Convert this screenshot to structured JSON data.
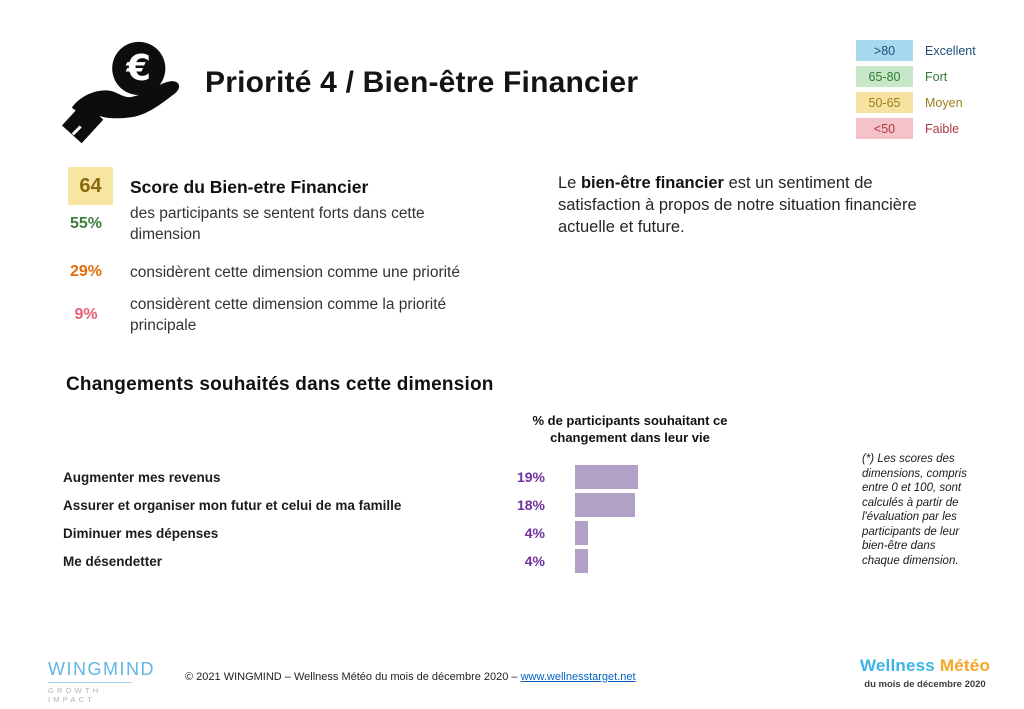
{
  "header": {
    "title": "Priorité 4 / Bien-être Financier",
    "icon": "hand-holding-euro-icon"
  },
  "legend": {
    "items": [
      {
        "range": ">80",
        "label": "Excellent",
        "chip_bg": "#a7d9ef",
        "text_color": "#1f4e7a"
      },
      {
        "range": "65-80",
        "label": "Fort",
        "chip_bg": "#c7e7c8",
        "text_color": "#2e7d32"
      },
      {
        "range": "50-65",
        "label": "Moyen",
        "chip_bg": "#f6e3a2",
        "text_color": "#a07c1e"
      },
      {
        "range": "<50",
        "label": "Faible",
        "chip_bg": "#f6c2ca",
        "text_color": "#a93a3f"
      }
    ]
  },
  "score_panel": {
    "score": "64",
    "score_box_bg": "#f7e6a2",
    "score_color": "#8a6a10",
    "score_title": "Score du Bien-etre Financier",
    "stats": [
      {
        "value": "55%",
        "color": "#3e7d3e",
        "text": "des participants se sentent forts dans cette dimension"
      },
      {
        "value": "29%",
        "color": "#e36c0a",
        "text": "considèrent cette dimension comme une priorité"
      },
      {
        "value": "9%",
        "color": "#e85d75",
        "text": "considèrent cette dimension comme la priorité principale"
      }
    ]
  },
  "description": {
    "prefix": "Le ",
    "bold": "bien-être financier",
    "suffix": " est un sentiment de satisfaction à propos de notre situation financière actuelle et future."
  },
  "changes_section": {
    "heading": "Changements souhaités dans cette dimension"
  },
  "chart_data": {
    "type": "bar",
    "orientation": "horizontal",
    "title": "% de participants souhaitant ce changement dans leur vie",
    "categories": [
      "Augmenter mes revenus",
      "Assurer et organiser mon futur et celui de ma famille",
      "Diminuer mes dépenses",
      "Me désendetter"
    ],
    "values": [
      19,
      18,
      4,
      4
    ],
    "value_labels": [
      "19%",
      "18%",
      "4%",
      "4%"
    ],
    "xlim": [
      0,
      20
    ],
    "bar_color": "#b2a1c7",
    "value_color": "#7030a0",
    "grid": false,
    "legend_position": "none"
  },
  "footnote": {
    "text": "(*) Les scores des dimensions, compris entre 0 et 100, sont calculés à partir de l'évaluation par les participants de leur bien-être dans chaque dimension."
  },
  "footer": {
    "logo": {
      "name": "WINGMIND",
      "tagline": "GROWTH IMPACT",
      "color": "#62b5e5"
    },
    "copyright_prefix": "© 2021 WINGMIND – Wellness Météo du mois de décembre 2020 – ",
    "copyright_link": "www.wellnesstarget.net",
    "link_color": "#0563c1",
    "brand": {
      "word1": "Wellness",
      "word1_color": "#3cb4e5",
      "word2": "Météo",
      "word2_color": "#f5a623",
      "subtitle": "du mois de décembre 2020"
    }
  }
}
